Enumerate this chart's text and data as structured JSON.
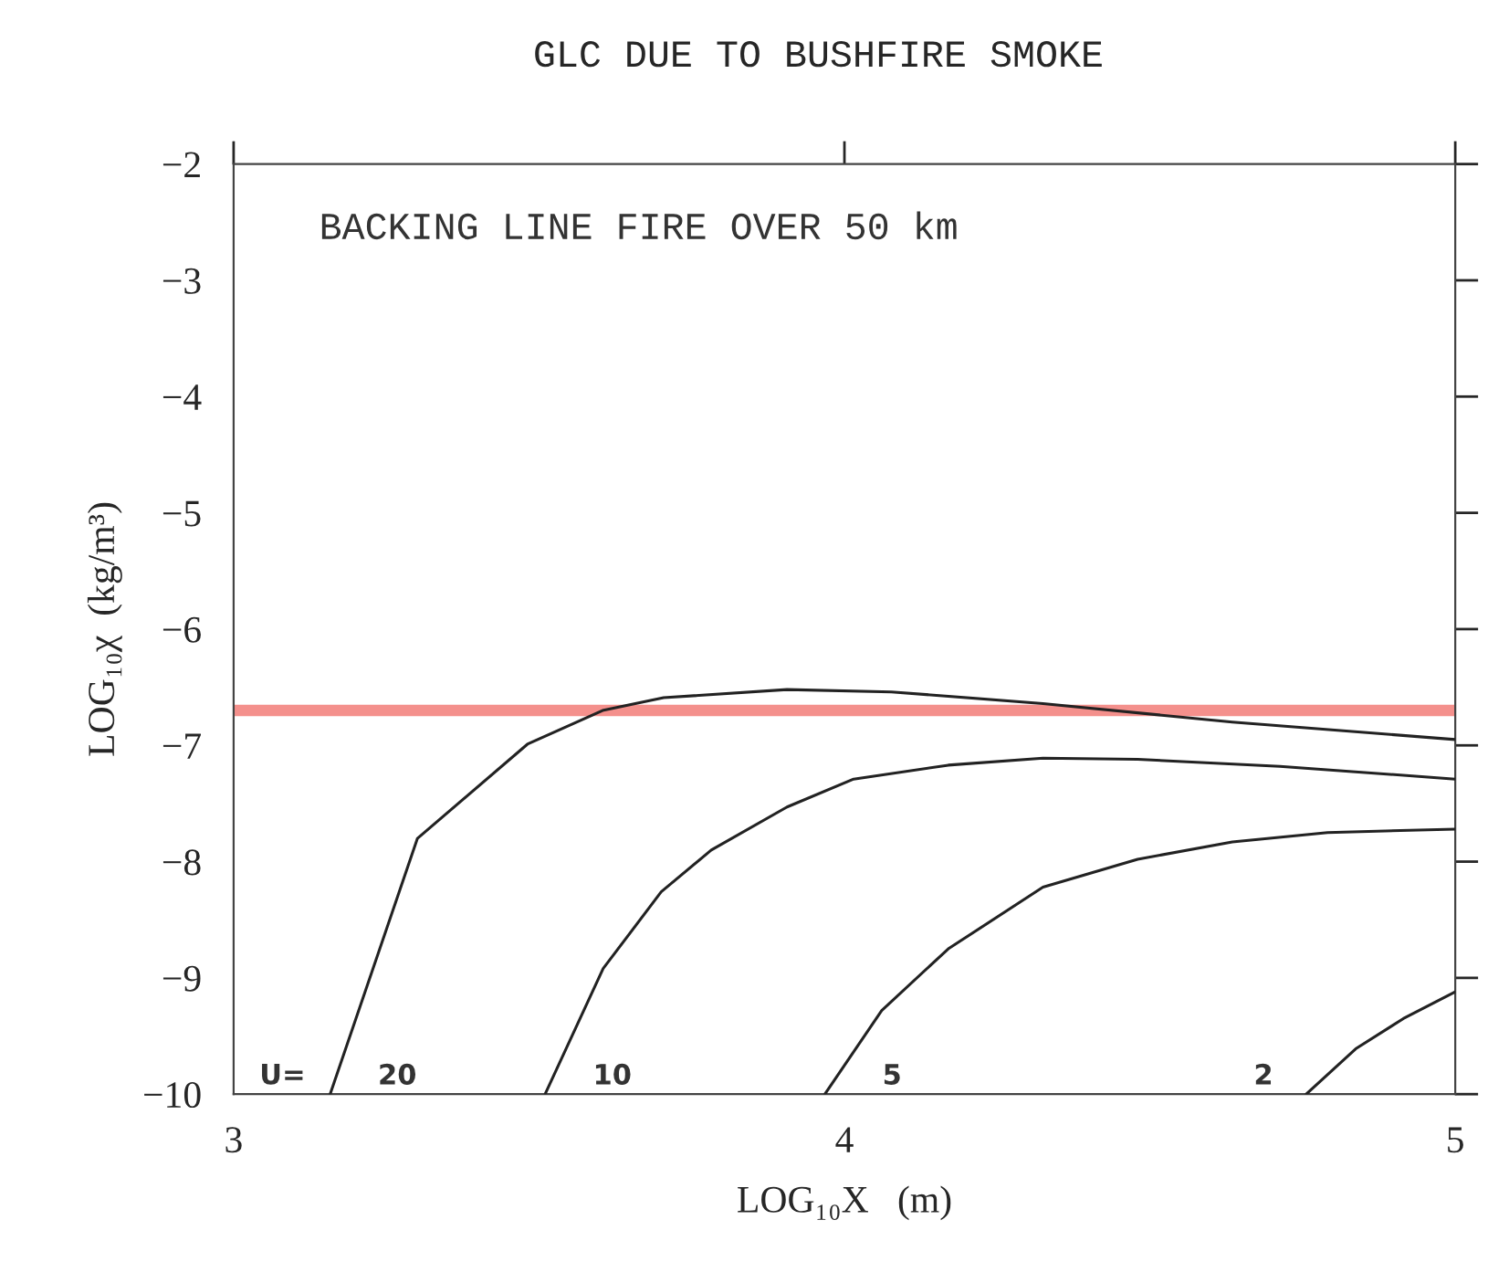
{
  "chart_data": {
    "type": "line",
    "title": "GLC DUE TO BUSHFIRE SMOKE",
    "xlabel": "LOG₁₀X   (m)",
    "ylabel": "LOG₁₀χ  (kg/m³)",
    "annotations": [
      "BACKING LINE FIRE OVER 50 km",
      "U="
    ],
    "xlim": [
      3,
      5
    ],
    "xticks": [
      3,
      4,
      5
    ],
    "ylim": [
      -10,
      -2
    ],
    "yticks": [
      -10,
      -9,
      -8,
      -7,
      -6,
      -5,
      -4,
      -3,
      -2
    ],
    "grid": false,
    "legend": false,
    "marker": "none",
    "line_style": "solid",
    "ref_lines": [
      {
        "axis": "y",
        "value": -6.7,
        "color": "#f4908c"
      }
    ],
    "series": [
      {
        "name": "20",
        "color": "#222222",
        "x": [
          3.158,
          3.301,
          3.481,
          3.604,
          3.704,
          3.906,
          4.077,
          4.325,
          4.635,
          5.0
        ],
        "values": [
          -10,
          -7.8,
          -6.99,
          -6.7,
          -6.59,
          -6.52,
          -6.54,
          -6.64,
          -6.8,
          -6.95
        ]
      },
      {
        "name": "10",
        "color": "#222222",
        "x": [
          3.51,
          3.605,
          3.7,
          3.782,
          3.906,
          4.015,
          4.17,
          4.325,
          4.48,
          4.713,
          5.0
        ],
        "values": [
          -10,
          -8.92,
          -8.26,
          -7.9,
          -7.53,
          -7.29,
          -7.17,
          -7.11,
          -7.12,
          -7.18,
          -7.29
        ]
      },
      {
        "name": "5",
        "color": "#222222",
        "x": [
          3.968,
          4.061,
          4.17,
          4.325,
          4.48,
          4.635,
          4.791,
          5.0
        ],
        "values": [
          -10,
          -9.28,
          -8.75,
          -8.22,
          -7.98,
          -7.83,
          -7.75,
          -7.72
        ]
      },
      {
        "name": "2",
        "color": "#222222",
        "x": [
          4.756,
          4.837,
          4.915,
          5.0
        ],
        "values": [
          -10,
          -9.61,
          -9.35,
          -9.12
        ]
      }
    ]
  }
}
